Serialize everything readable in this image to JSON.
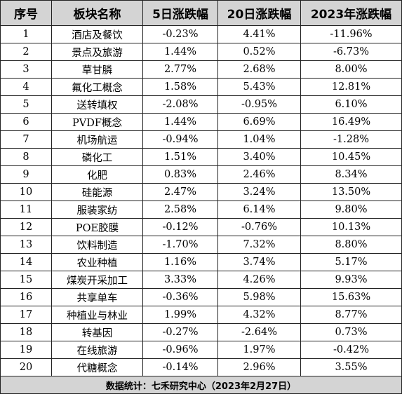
{
  "table": {
    "headers": [
      "序号",
      "板块名称",
      "5日涨跌幅",
      "20日涨跌幅",
      "2023年涨跌幅"
    ],
    "rows": [
      [
        "1",
        "酒店及餐饮",
        "-0.23%",
        "4.41%",
        "-11.96%"
      ],
      [
        "2",
        "景点及旅游",
        "1.44%",
        "0.52%",
        "-6.73%"
      ],
      [
        "3",
        "草甘膦",
        "2.77%",
        "2.68%",
        "8.00%"
      ],
      [
        "4",
        "氟化工概念",
        "1.58%",
        "5.43%",
        "12.81%"
      ],
      [
        "5",
        "送转填权",
        "-2.08%",
        "-0.95%",
        "6.10%"
      ],
      [
        "6",
        "PVDF概念",
        "1.44%",
        "6.69%",
        "16.49%"
      ],
      [
        "7",
        "机场航运",
        "-0.94%",
        "1.04%",
        "-1.28%"
      ],
      [
        "8",
        "磷化工",
        "1.51%",
        "3.40%",
        "10.45%"
      ],
      [
        "9",
        "化肥",
        "0.83%",
        "2.46%",
        "8.34%"
      ],
      [
        "10",
        "硅能源",
        "2.47%",
        "3.24%",
        "13.50%"
      ],
      [
        "11",
        "服装家纺",
        "2.58%",
        "6.14%",
        "9.80%"
      ],
      [
        "12",
        "POE胶膜",
        "-0.12%",
        "-0.76%",
        "10.13%"
      ],
      [
        "13",
        "饮料制造",
        "-1.70%",
        "7.32%",
        "8.80%"
      ],
      [
        "14",
        "农业种植",
        "1.16%",
        "3.74%",
        "5.17%"
      ],
      [
        "15",
        "煤炭开采加工",
        "3.33%",
        "4.26%",
        "9.93%"
      ],
      [
        "16",
        "共享单车",
        "-0.36%",
        "5.98%",
        "15.63%"
      ],
      [
        "17",
        "种植业与林业",
        "1.99%",
        "4.32%",
        "8.77%"
      ],
      [
        "18",
        "转基因",
        "-0.27%",
        "-2.64%",
        "0.73%"
      ],
      [
        "19",
        "在线旅游",
        "-0.96%",
        "1.97%",
        "-0.42%"
      ],
      [
        "20",
        "代糖概念",
        "-0.14%",
        "2.96%",
        "3.55%"
      ]
    ],
    "footer": "数据统计：七禾研究中心（2023年2月27日）"
  },
  "colors": {
    "header_bg": "#d4d4d4",
    "footer_bg": "#d4d4d4",
    "border": "#222222"
  }
}
